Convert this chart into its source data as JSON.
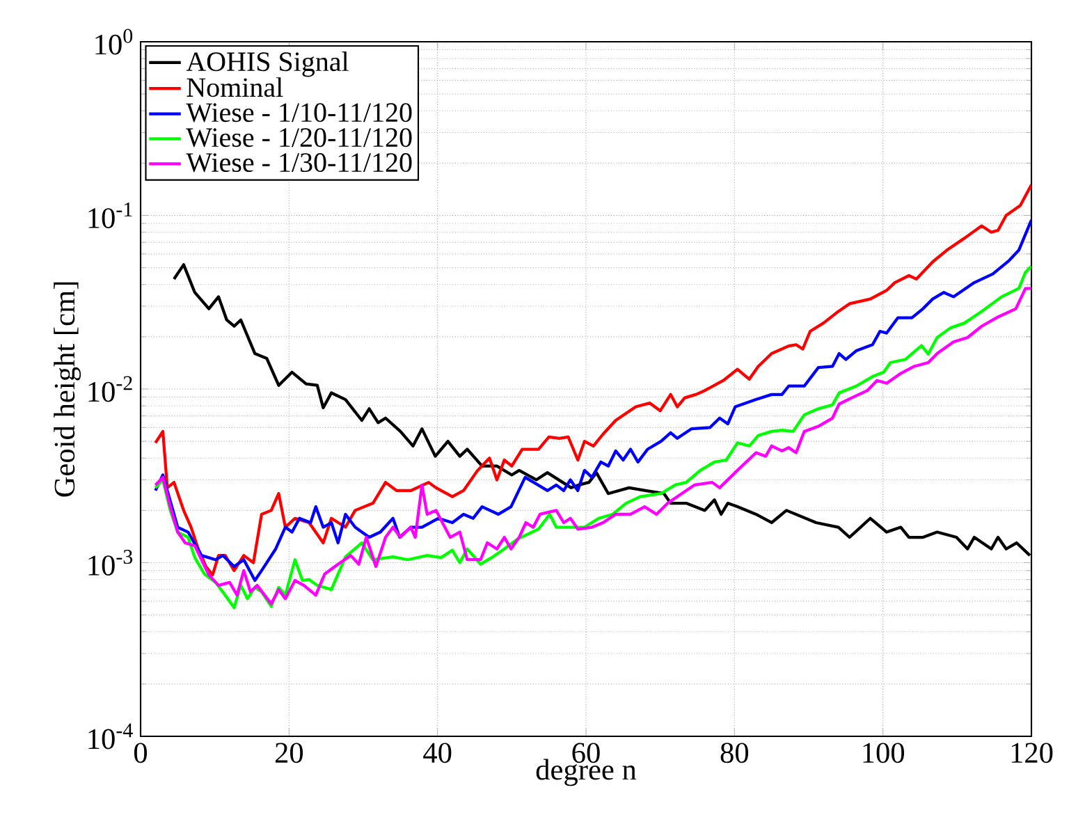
{
  "chart_data": {
    "type": "line",
    "xlabel": "degree n",
    "ylabel": "Geoid height [cm]",
    "xlim": [
      0,
      120
    ],
    "ylim": [
      0.0001,
      1
    ],
    "xticks": [
      0,
      20,
      40,
      60,
      80,
      100,
      120
    ],
    "yticks": [
      {
        "value": 0.0001,
        "label": "10$^{-4}$"
      },
      {
        "value": 0.001,
        "label": "10$^{-3}$"
      },
      {
        "value": 0.01,
        "label": "10$^{-2}$"
      },
      {
        "value": 0.1,
        "label": "10$^{-1}$"
      },
      {
        "value": 1,
        "label": "10$^{0}$"
      }
    ],
    "log": "y",
    "grid": true,
    "legend": "top left",
    "marker": "none",
    "line_style": "solid",
    "series": [
      {
        "name": "AOHIS Signal",
        "color": "#000000",
        "x": [
          4.5,
          5.8,
          7.3,
          9.2,
          10.5,
          11.6,
          12.6,
          13.5,
          15.4,
          17,
          18.6,
          20.4,
          22.3,
          23.8,
          24.6,
          25.7,
          27.6,
          29.8,
          30.8,
          32,
          33,
          35,
          36.7,
          37.9,
          39.7,
          41.4,
          43,
          44,
          46,
          48,
          50,
          51,
          53.3,
          54.8,
          58,
          59,
          60.4,
          61.4,
          63,
          65.8,
          68,
          70.5,
          71.4,
          73.5,
          76,
          77.3,
          78.2,
          79.1,
          80.4,
          82.9,
          85,
          87,
          91,
          94,
          95.5,
          98.3,
          100.5,
          102.4,
          103.5,
          105.4,
          107.3,
          109.9,
          111.4,
          112.3,
          114.6,
          115.5,
          116.6,
          118,
          119.8
        ],
        "values": [
          0.043,
          0.052,
          0.036,
          0.029,
          0.034,
          0.025,
          0.023,
          0.025,
          0.016,
          0.015,
          0.0105,
          0.0125,
          0.0107,
          0.0105,
          0.0078,
          0.0095,
          0.0087,
          0.0066,
          0.0077,
          0.0064,
          0.0068,
          0.0057,
          0.0047,
          0.0059,
          0.0041,
          0.005,
          0.0041,
          0.0045,
          0.0036,
          0.0036,
          0.0032,
          0.0034,
          0.003,
          0.0033,
          0.0027,
          0.0028,
          0.0029,
          0.0033,
          0.0025,
          0.0027,
          0.0026,
          0.0025,
          0.0022,
          0.0022,
          0.002,
          0.0023,
          0.0019,
          0.0022,
          0.0021,
          0.0019,
          0.0017,
          0.002,
          0.0017,
          0.0016,
          0.0014,
          0.0018,
          0.0015,
          0.0016,
          0.0014,
          0.0014,
          0.0015,
          0.0014,
          0.0012,
          0.0014,
          0.0012,
          0.0014,
          0.0012,
          0.0013,
          0.0011
        ]
      },
      {
        "name": "Nominal",
        "color": "#ff0000",
        "x": [
          2,
          3,
          3.6,
          4.5,
          5.8,
          6.8,
          7.7,
          8.8,
          9.7,
          10.5,
          11.4,
          12.6,
          13.9,
          15.2,
          16.3,
          17.6,
          18.6,
          19.5,
          20.8,
          22.7,
          24.6,
          25.7,
          27.6,
          28.9,
          31.3,
          33,
          34.5,
          36.4,
          38.8,
          39.8,
          42,
          43.5,
          45.4,
          47,
          48,
          49,
          50,
          51.4,
          53.6,
          55,
          56.4,
          57.6,
          58.9,
          59.8,
          61,
          62.3,
          64,
          66.7,
          68.6,
          70,
          71.4,
          72.3,
          73.3,
          74.8,
          76,
          78.5,
          80.4,
          82,
          83.2,
          85,
          87.3,
          88.3,
          89.2,
          90.2,
          92,
          94,
          95.5,
          98.3,
          100.5,
          101.6,
          103.5,
          104.5,
          106.7,
          108.6,
          111,
          113.3,
          114.6,
          115.5,
          116.6,
          118.5,
          120
        ],
        "values": [
          0.0049,
          0.0057,
          0.0027,
          0.0029,
          0.002,
          0.0016,
          0.00122,
          0.00095,
          0.00085,
          0.0011,
          0.0011,
          0.0009,
          0.0011,
          0.001,
          0.0019,
          0.002,
          0.0025,
          0.0016,
          0.0018,
          0.0017,
          0.0013,
          0.0018,
          0.0016,
          0.002,
          0.0022,
          0.0029,
          0.0026,
          0.0026,
          0.0029,
          0.0027,
          0.0024,
          0.0026,
          0.0034,
          0.004,
          0.003,
          0.0039,
          0.0036,
          0.0045,
          0.0045,
          0.0053,
          0.0052,
          0.0053,
          0.0039,
          0.005,
          0.0047,
          0.0055,
          0.0066,
          0.0079,
          0.0083,
          0.0075,
          0.0093,
          0.0079,
          0.0089,
          0.0093,
          0.0098,
          0.0112,
          0.013,
          0.0114,
          0.0135,
          0.016,
          0.0177,
          0.018,
          0.017,
          0.0215,
          0.024,
          0.028,
          0.031,
          0.033,
          0.037,
          0.041,
          0.045,
          0.043,
          0.054,
          0.063,
          0.074,
          0.087,
          0.08,
          0.082,
          0.1,
          0.114,
          0.15
        ]
      },
      {
        "name": "Wiese - 1/10-11/120",
        "color": "#0000ff",
        "x": [
          2,
          3,
          4,
          5,
          6.4,
          8.2,
          10.1,
          11.1,
          12.6,
          13.9,
          15.4,
          16.3,
          18.2,
          19.5,
          20.4,
          21.4,
          22.9,
          23.6,
          24.6,
          25.7,
          26.6,
          27.6,
          28.9,
          30.8,
          32.3,
          34,
          34.9,
          36.4,
          37.9,
          40.1,
          42,
          43.5,
          44.8,
          46,
          48.2,
          49.9,
          51.8,
          54.8,
          56,
          57,
          57.9,
          58.9,
          59.8,
          60.8,
          62,
          63,
          64,
          65,
          66,
          67,
          68.3,
          70.1,
          71.4,
          72.3,
          74.2,
          76.7,
          78,
          79.1,
          80.1,
          82.9,
          85,
          86.4,
          87.3,
          89.4,
          91.3,
          93.2,
          94.1,
          95,
          96.4,
          98.6,
          99.6,
          100.5,
          102,
          103.9,
          105.4,
          106.7,
          108.2,
          109.5,
          112.3,
          114.8,
          117,
          118.3,
          120
        ],
        "values": [
          0.0026,
          0.0032,
          null,
          0.0016,
          0.0015,
          0.0011,
          0.00104,
          0.0011,
          0.00095,
          0.00104,
          0.00079,
          0.0009,
          0.0012,
          0.0016,
          0.0015,
          0.0018,
          0.0017,
          0.0021,
          0.0016,
          0.0017,
          0.0013,
          0.0019,
          0.0016,
          0.0014,
          0.0015,
          0.0018,
          0.0014,
          0.0016,
          0.0016,
          0.0018,
          0.0017,
          0.0019,
          0.0018,
          0.0021,
          0.0019,
          0.0021,
          0.0031,
          0.0026,
          0.0028,
          0.0026,
          0.003,
          0.0026,
          0.0034,
          0.0031,
          0.0038,
          0.0036,
          0.0044,
          0.0039,
          0.0045,
          0.0038,
          0.0045,
          0.005,
          0.0056,
          0.0052,
          0.0059,
          0.006,
          0.0068,
          0.0063,
          0.0079,
          0.0087,
          0.0093,
          0.0093,
          0.0104,
          0.0104,
          0.0133,
          0.0135,
          0.016,
          0.0148,
          0.0166,
          0.018,
          0.0215,
          0.021,
          0.0257,
          0.0257,
          0.029,
          0.033,
          0.036,
          0.034,
          0.041,
          0.046,
          0.055,
          0.063,
          0.094
        ]
      },
      {
        "name": "Wiese - 1/20-11/120",
        "color": "#00ff00",
        "x": [
          2,
          3,
          4,
          5,
          6.4,
          7.3,
          8.6,
          10.1,
          11.4,
          12.6,
          13.5,
          14.4,
          15.4,
          16.3,
          17.6,
          18.6,
          19.5,
          20.8,
          21.8,
          22.7,
          23.8,
          25.7,
          27.6,
          29.8,
          31.3,
          34,
          36,
          38.6,
          40.5,
          42,
          43,
          44,
          45.8,
          47.3,
          49,
          50.8,
          53.6,
          55.1,
          56,
          57.9,
          59.8,
          61.7,
          63.6,
          65.4,
          67.3,
          70.1,
          72,
          73.5,
          75.4,
          77.3,
          78.9,
          80.4,
          82,
          83.2,
          85,
          86.4,
          87.9,
          89.4,
          91.3,
          93.2,
          94.1,
          96.4,
          98.6,
          100.1,
          101,
          103,
          105.2,
          106.1,
          107.3,
          109.1,
          111,
          113.3,
          116,
          118.3,
          119.2,
          120
        ],
        "values": [
          0.0027,
          0.003,
          0.002,
          0.0015,
          0.0014,
          0.00107,
          0.00086,
          0.00077,
          0.00065,
          0.00055,
          0.00074,
          0.00062,
          0.00072,
          0.00068,
          0.00056,
          0.00072,
          0.00065,
          0.00104,
          0.00079,
          0.0008,
          0.00074,
          0.0007,
          0.00108,
          0.0013,
          0.00104,
          0.00108,
          0.00104,
          0.0011,
          0.00107,
          0.00118,
          0.001,
          0.0012,
          0.00098,
          0.00107,
          0.0012,
          0.00137,
          0.00156,
          0.0019,
          0.0016,
          0.0016,
          0.0016,
          0.0018,
          0.0019,
          0.0022,
          0.0024,
          0.0025,
          0.0028,
          0.0029,
          0.0034,
          0.0038,
          0.0039,
          0.0049,
          0.0047,
          0.0054,
          0.0057,
          0.0058,
          0.0057,
          0.0071,
          0.0077,
          0.0081,
          0.0095,
          0.0104,
          0.0118,
          0.0125,
          0.0142,
          0.0148,
          0.0178,
          0.0159,
          0.0198,
          0.0225,
          0.024,
          0.028,
          0.034,
          0.038,
          0.047,
          0.051
        ]
      },
      {
        "name": "Wiese - 1/30-11/120",
        "color": "#ff00ff",
        "x": [
          2,
          3,
          4,
          5,
          6,
          7.3,
          9.2,
          10.5,
          12,
          13,
          13.9,
          14.8,
          15.7,
          17.6,
          18.6,
          19.5,
          20.8,
          22,
          23.6,
          24.8,
          26.6,
          28.3,
          29.4,
          30.4,
          31.7,
          33,
          34,
          35,
          36.4,
          37,
          37.9,
          38.6,
          39.8,
          41.7,
          43,
          44,
          45.8,
          46.7,
          48,
          49,
          49.9,
          51,
          51.9,
          52.9,
          53.8,
          56,
          57,
          57.9,
          58.9,
          60.8,
          62.3,
          64,
          66,
          67.9,
          69.5,
          71,
          72.9,
          74.6,
          77,
          78,
          80.4,
          82.9,
          84.2,
          85,
          86.4,
          87.3,
          88.3,
          89.4,
          91.3,
          93.2,
          94.1,
          95.8,
          97.9,
          99.2,
          100.5,
          102.4,
          104.2,
          106.1,
          107.3,
          109.5,
          111.4,
          113.3,
          115.5,
          117.9,
          119.2,
          120
        ],
        "values": [
          0.0028,
          0.0031,
          0.0021,
          0.0015,
          0.0013,
          0.00125,
          0.00085,
          0.00074,
          0.00077,
          0.00065,
          0.0009,
          0.00068,
          0.00074,
          0.00058,
          0.0007,
          0.00062,
          0.00079,
          0.00074,
          0.00065,
          0.00086,
          0.00098,
          0.0011,
          0.00098,
          0.0014,
          0.00095,
          0.0014,
          0.0016,
          0.0014,
          0.0016,
          0.0014,
          0.0028,
          0.0019,
          0.002,
          0.0014,
          0.0015,
          0.00104,
          0.00104,
          0.0013,
          0.0012,
          0.0014,
          0.0012,
          0.0014,
          0.0017,
          0.0016,
          0.0019,
          0.002,
          0.0017,
          0.0018,
          0.00156,
          0.0016,
          0.0017,
          0.0019,
          0.0019,
          0.0021,
          0.0019,
          0.0022,
          0.0025,
          0.0028,
          0.0029,
          0.0027,
          0.0034,
          0.0043,
          0.0041,
          0.0047,
          0.0044,
          0.0046,
          0.0043,
          0.0057,
          0.0061,
          0.0068,
          0.0082,
          0.0089,
          0.0098,
          0.0112,
          0.0108,
          0.0123,
          0.0135,
          0.0142,
          0.016,
          0.0187,
          0.0198,
          0.023,
          0.026,
          0.029,
          0.038,
          0.038
        ]
      }
    ]
  }
}
